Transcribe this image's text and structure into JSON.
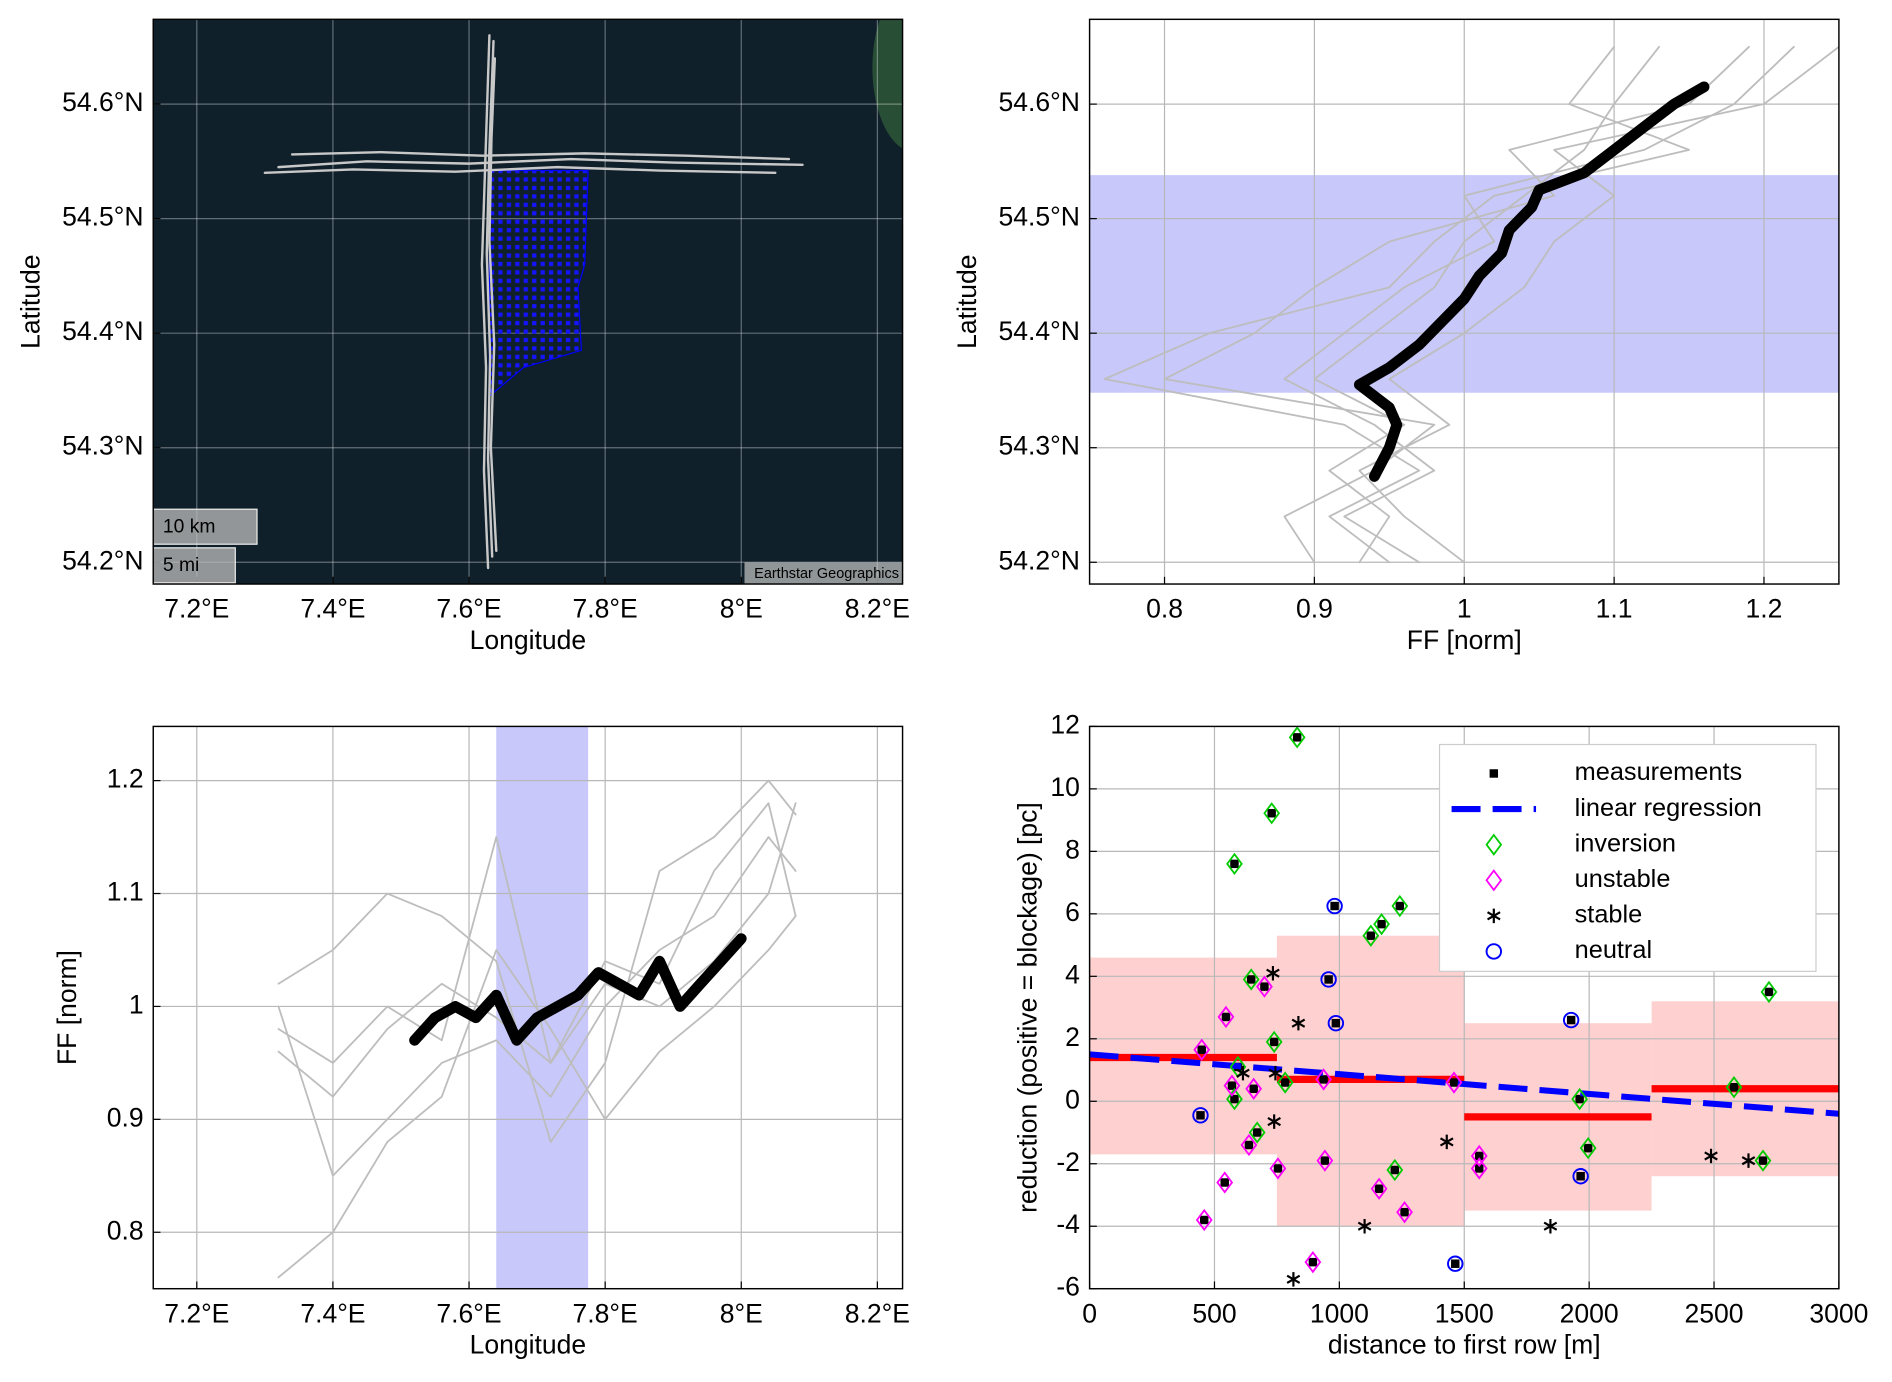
{
  "chart_data": [
    {
      "type": "map",
      "xlabel": "Longitude",
      "ylabel": "Latitude",
      "xlim": [
        7.136,
        8.237
      ],
      "ylim": [
        54.181,
        54.674
      ],
      "xticks": [
        {
          "value": 7.2,
          "label": "7.2°E"
        },
        {
          "value": 7.4,
          "label": "7.4°E"
        },
        {
          "value": 7.6,
          "label": "7.6°E"
        },
        {
          "value": 7.8,
          "label": "7.8°E"
        },
        {
          "value": 8,
          "label": "8°E"
        },
        {
          "value": 8.2,
          "label": "8.2°E"
        }
      ],
      "yticks": [
        {
          "value": 54.2,
          "label": "54.2°N"
        },
        {
          "value": 54.3,
          "label": "54.3°N"
        },
        {
          "value": 54.4,
          "label": "54.4°N"
        },
        {
          "value": 54.5,
          "label": "54.5°N"
        },
        {
          "value": 54.6,
          "label": "54.6°N"
        }
      ],
      "grid": true,
      "grid_color": "rgba(255,255,255,0.35)",
      "series": [
        {
          "color": "#c8c8c8",
          "width": 2,
          "x": [
            7.628,
            7.622,
            7.625,
            7.619,
            7.624,
            7.63
          ],
          "y": [
            54.195,
            54.28,
            54.37,
            54.46,
            54.55,
            54.66
          ]
        },
        {
          "color": "#c8c8c8",
          "width": 2,
          "x": [
            7.634,
            7.628,
            7.631,
            7.626,
            7.63,
            7.636
          ],
          "y": [
            54.205,
            54.29,
            54.38,
            54.47,
            54.56,
            54.655
          ]
        },
        {
          "color": "#c8c8c8",
          "width": 2,
          "x": [
            7.64,
            7.632,
            7.637,
            7.63,
            7.633,
            7.638
          ],
          "y": [
            54.21,
            54.3,
            54.39,
            54.48,
            54.57,
            54.64
          ]
        },
        {
          "color": "#c8c8c8",
          "width": 2,
          "x": [
            7.32,
            7.45,
            7.6,
            7.75,
            7.9,
            8.09
          ],
          "y": [
            54.545,
            54.55,
            54.548,
            54.552,
            54.549,
            54.547
          ]
        },
        {
          "color": "#c8c8c8",
          "width": 2,
          "x": [
            7.34,
            7.47,
            7.62,
            7.77,
            7.92,
            8.07
          ],
          "y": [
            54.556,
            54.558,
            54.555,
            54.557,
            54.555,
            54.552
          ]
        },
        {
          "color": "#c8c8c8",
          "width": 2,
          "x": [
            7.3,
            7.43,
            7.58,
            7.73,
            7.88,
            8.05
          ],
          "y": [
            54.54,
            54.543,
            54.541,
            54.545,
            54.542,
            54.54
          ]
        }
      ],
      "farm": {
        "color": "#0000ff",
        "x": [
          7.63,
          7.775,
          7.77,
          7.76,
          7.765,
          7.68,
          7.63
        ],
        "y": [
          54.542,
          54.542,
          54.46,
          54.44,
          54.385,
          54.37,
          54.345
        ]
      },
      "scale_labels": [
        "10 km",
        "5 mi"
      ],
      "attribution": "Earthstar Geographics"
    },
    {
      "type": "line",
      "xlabel": "FF [norm]",
      "ylabel": "Latitude",
      "xlim": [
        0.75,
        1.25
      ],
      "ylim": [
        54.181,
        54.674
      ],
      "xticks": [
        0.8,
        0.9,
        1,
        1.1,
        1.2
      ],
      "yticks": [
        {
          "value": 54.2,
          "label": "54.2°N"
        },
        {
          "value": 54.3,
          "label": "54.3°N"
        },
        {
          "value": 54.4,
          "label": "54.4°N"
        },
        {
          "value": 54.5,
          "label": "54.5°N"
        },
        {
          "value": 54.6,
          "label": "54.6°N"
        }
      ],
      "grid": true,
      "grid_color": "#b8b8b8",
      "band": {
        "axis": "y",
        "range": [
          54.348,
          54.538
        ],
        "color": "#c8c8fa"
      },
      "series": [
        {
          "color": "#bdbdbd",
          "width": 1.5,
          "x": [
            0.93,
            0.95,
            0.91,
            0.96,
            0.9,
            0.94,
            0.98,
            1.0,
            1.04,
            1.08,
            1.1,
            1.13
          ],
          "y": [
            54.2,
            54.24,
            54.28,
            54.32,
            54.36,
            54.4,
            54.44,
            54.48,
            54.52,
            54.56,
            54.6,
            54.65
          ]
        },
        {
          "color": "#bdbdbd",
          "width": 1.5,
          "x": [
            0.97,
            0.92,
            0.98,
            0.94,
            0.88,
            0.92,
            0.96,
            1.02,
            1.0,
            1.12,
            1.18,
            1.22
          ],
          "y": [
            54.2,
            54.24,
            54.28,
            54.32,
            54.36,
            54.4,
            54.44,
            54.48,
            54.52,
            54.56,
            54.6,
            54.65
          ]
        },
        {
          "color": "#bdbdbd",
          "width": 1.5,
          "x": [
            0.9,
            0.88,
            0.94,
            0.98,
            0.8,
            0.86,
            0.9,
            0.95,
            1.06,
            1.03,
            1.15,
            1.19
          ],
          "y": [
            54.2,
            54.24,
            54.28,
            54.32,
            54.36,
            54.4,
            54.44,
            54.48,
            54.52,
            54.56,
            54.6,
            54.65
          ]
        },
        {
          "color": "#bdbdbd",
          "width": 1.5,
          "x": [
            1.0,
            0.96,
            0.93,
            0.99,
            0.95,
            1.0,
            1.04,
            1.06,
            1.1,
            1.06,
            1.2,
            1.25
          ],
          "y": [
            54.2,
            54.24,
            54.28,
            54.32,
            54.36,
            54.4,
            54.44,
            54.48,
            54.52,
            54.56,
            54.6,
            54.65
          ]
        },
        {
          "color": "#bdbdbd",
          "width": 1.5,
          "x": [
            0.95,
            0.91,
            0.97,
            0.92,
            0.76,
            0.83,
            0.95,
            0.98,
            1.02,
            1.15,
            1.07,
            1.1
          ],
          "y": [
            54.2,
            54.24,
            54.28,
            54.32,
            54.36,
            54.4,
            54.44,
            54.48,
            54.52,
            54.56,
            54.6,
            54.65
          ]
        },
        {
          "color": "#000000",
          "width": 9,
          "x": [
            0.94,
            0.95,
            0.955,
            0.95,
            0.93,
            0.95,
            0.97,
            0.985,
            1.0,
            1.01,
            1.025,
            1.03,
            1.045,
            1.05,
            1.08,
            1.1,
            1.12,
            1.14,
            1.16
          ],
          "y": [
            54.275,
            54.3,
            54.32,
            54.335,
            54.355,
            54.37,
            54.39,
            54.41,
            54.43,
            54.45,
            54.47,
            54.49,
            54.51,
            54.525,
            54.54,
            54.56,
            54.58,
            54.6,
            54.615
          ]
        }
      ]
    },
    {
      "type": "line",
      "xlabel": "Longitude",
      "ylabel": "FF [norm]",
      "xlim": [
        7.136,
        8.237
      ],
      "ylim": [
        0.75,
        1.248
      ],
      "xticks": [
        {
          "value": 7.2,
          "label": "7.2°E"
        },
        {
          "value": 7.4,
          "label": "7.4°E"
        },
        {
          "value": 7.6,
          "label": "7.6°E"
        },
        {
          "value": 7.8,
          "label": "7.8°E"
        },
        {
          "value": 8,
          "label": "8°E"
        },
        {
          "value": 8.2,
          "label": "8.2°E"
        }
      ],
      "yticks": [
        0.8,
        0.9,
        1,
        1.1,
        1.2
      ],
      "grid": true,
      "grid_color": "#b8b8b8",
      "band": {
        "axis": "x",
        "range": [
          7.64,
          7.775
        ],
        "color": "#c8c8fa"
      },
      "series": [
        {
          "color": "#bdbdbd",
          "width": 1.5,
          "x": [
            7.32,
            7.4,
            7.48,
            7.56,
            7.64,
            7.72,
            7.8,
            7.88,
            7.96,
            8.04,
            8.08
          ],
          "y": [
            1.0,
            0.85,
            0.9,
            0.95,
            0.97,
            0.92,
            1.0,
            1.05,
            1.08,
            1.15,
            1.12
          ]
        },
        {
          "color": "#bdbdbd",
          "width": 1.5,
          "x": [
            7.32,
            7.4,
            7.48,
            7.56,
            7.64,
            7.72,
            7.8,
            7.88,
            7.96,
            8.04,
            8.08
          ],
          "y": [
            0.96,
            0.92,
            0.98,
            1.02,
            0.99,
            0.95,
            1.02,
            1.0,
            1.04,
            1.1,
            1.18
          ]
        },
        {
          "color": "#bdbdbd",
          "width": 1.5,
          "x": [
            7.32,
            7.4,
            7.48,
            7.56,
            7.64,
            7.72,
            7.8,
            7.88,
            7.96,
            8.04,
            8.08
          ],
          "y": [
            1.02,
            1.05,
            1.1,
            1.08,
            1.04,
            0.88,
            0.95,
            1.12,
            1.15,
            1.2,
            1.17
          ]
        },
        {
          "color": "#bdbdbd",
          "width": 1.5,
          "x": [
            7.32,
            7.4,
            7.48,
            7.56,
            7.64,
            7.72,
            7.8,
            7.88,
            7.96,
            8.04,
            8.08
          ],
          "y": [
            0.76,
            0.8,
            0.88,
            0.92,
            1.05,
            0.98,
            0.9,
            0.96,
            1.0,
            1.05,
            1.08
          ]
        },
        {
          "color": "#bdbdbd",
          "width": 1.5,
          "x": [
            7.32,
            7.4,
            7.48,
            7.56,
            7.64,
            7.72,
            7.8,
            7.88,
            7.96,
            8.04,
            8.08
          ],
          "y": [
            0.98,
            0.95,
            1.0,
            0.97,
            1.15,
            0.95,
            1.04,
            1.02,
            1.12,
            1.18,
            1.08
          ]
        },
        {
          "color": "#000000",
          "width": 9,
          "x": [
            7.52,
            7.55,
            7.58,
            7.61,
            7.64,
            7.67,
            7.7,
            7.73,
            7.76,
            7.79,
            7.82,
            7.85,
            7.88,
            7.91,
            7.94,
            7.97,
            8.0
          ],
          "y": [
            0.97,
            0.99,
            1.0,
            0.99,
            1.01,
            0.97,
            0.99,
            1.0,
            1.01,
            1.03,
            1.02,
            1.01,
            1.04,
            1.0,
            1.02,
            1.04,
            1.06
          ]
        }
      ]
    },
    {
      "type": "scatter",
      "xlabel": "distance to first row [m]",
      "ylabel": "reduction (positive = blockage) [pc]",
      "xlim": [
        0,
        3000
      ],
      "ylim": [
        -6,
        12
      ],
      "xticks": [
        0,
        500,
        1000,
        1500,
        2000,
        2500,
        3000
      ],
      "yticks": [
        -6,
        -4,
        -2,
        0,
        2,
        4,
        6,
        8,
        10,
        12
      ],
      "grid": true,
      "grid_color": "#b8b8b8",
      "legend": "upper right",
      "bins": {
        "color": "#ffc8c8",
        "mean_color": "#ff0000",
        "bin_edges": [
          0,
          750,
          1500,
          2250,
          3000
        ],
        "band_low": [
          -1.7,
          -4,
          -3.5,
          -2.4
        ],
        "band_high": [
          4.6,
          5.3,
          2.5,
          3.2
        ],
        "bin_mean": [
          1.4,
          0.7,
          -0.5,
          0.4
        ]
      },
      "series": [
        {
          "name": "measurements",
          "marker": "square",
          "color": "#000000",
          "x": [
            831,
            729,
            580,
            1242,
            1169,
            1126,
            647,
            2720,
            739,
            594,
            783,
            580,
            1962,
            2580,
            671,
            1996,
            2696,
            1222,
            700,
            546,
            449,
            937,
            1459,
            570,
            657,
            638,
            1560,
            1560,
            942,
            754,
            541,
            1159,
            1261,
            459,
            894,
            981,
            957,
            986,
            1928,
            444,
            1966,
            1464
          ],
          "y": [
            11.65,
            9.22,
            7.6,
            6.25,
            5.67,
            5.3,
            3.9,
            3.5,
            1.9,
            1.1,
            0.6,
            0.07,
            0.07,
            0.45,
            -1.0,
            -1.5,
            -1.9,
            -2.2,
            3.67,
            2.7,
            1.65,
            0.7,
            0.6,
            0.5,
            0.4,
            -1.4,
            -1.75,
            -2.15,
            -1.9,
            -2.15,
            -2.6,
            -2.8,
            -3.55,
            -3.8,
            -5.15,
            6.25,
            3.9,
            2.5,
            2.6,
            -0.45,
            -2.4,
            -5.2
          ]
        },
        {
          "name": "linear regression",
          "marker": "dashed",
          "color": "#0000ff",
          "x": [
            0,
            3000
          ],
          "y": [
            1.5,
            -0.4
          ]
        },
        {
          "name": "inversion",
          "marker": "diamond",
          "color": "#00cc00",
          "x": [
            831,
            729,
            580,
            1242,
            1169,
            1126,
            647,
            2720,
            739,
            594,
            783,
            580,
            1962,
            2580,
            671,
            1996,
            2696,
            1222
          ],
          "y": [
            11.65,
            9.22,
            7.6,
            6.25,
            5.67,
            5.3,
            3.9,
            3.5,
            1.9,
            1.1,
            0.6,
            0.07,
            0.07,
            0.45,
            -1.0,
            -1.5,
            -1.9,
            -2.2
          ]
        },
        {
          "name": "unstable",
          "marker": "diamond",
          "color": "#ff00ff",
          "x": [
            700,
            546,
            449,
            937,
            1459,
            570,
            657,
            638,
            1560,
            1560,
            942,
            754,
            541,
            1159,
            1261,
            459,
            894
          ],
          "y": [
            3.67,
            2.7,
            1.65,
            0.7,
            0.6,
            0.5,
            0.4,
            -1.4,
            -1.75,
            -2.15,
            -1.9,
            -2.15,
            -2.6,
            -2.8,
            -3.55,
            -3.8,
            -5.15
          ]
        },
        {
          "name": "stable",
          "marker": "star",
          "color": "#000000",
          "x": [
            734,
            836,
            614,
            744,
            739,
            2488,
            2638,
            1101,
            1845,
            1430,
            816
          ],
          "y": [
            4.1,
            2.5,
            0.9,
            0.9,
            -0.65,
            -1.75,
            -1.9,
            -4.0,
            -4.0,
            -1.3,
            -5.7
          ]
        },
        {
          "name": "neutral",
          "marker": "circle",
          "color": "#0000ff",
          "x": [
            981,
            957,
            986,
            1928,
            444,
            1966,
            1464
          ],
          "y": [
            6.25,
            3.9,
            2.5,
            2.6,
            -0.45,
            -2.4,
            -5.2
          ]
        }
      ]
    }
  ]
}
